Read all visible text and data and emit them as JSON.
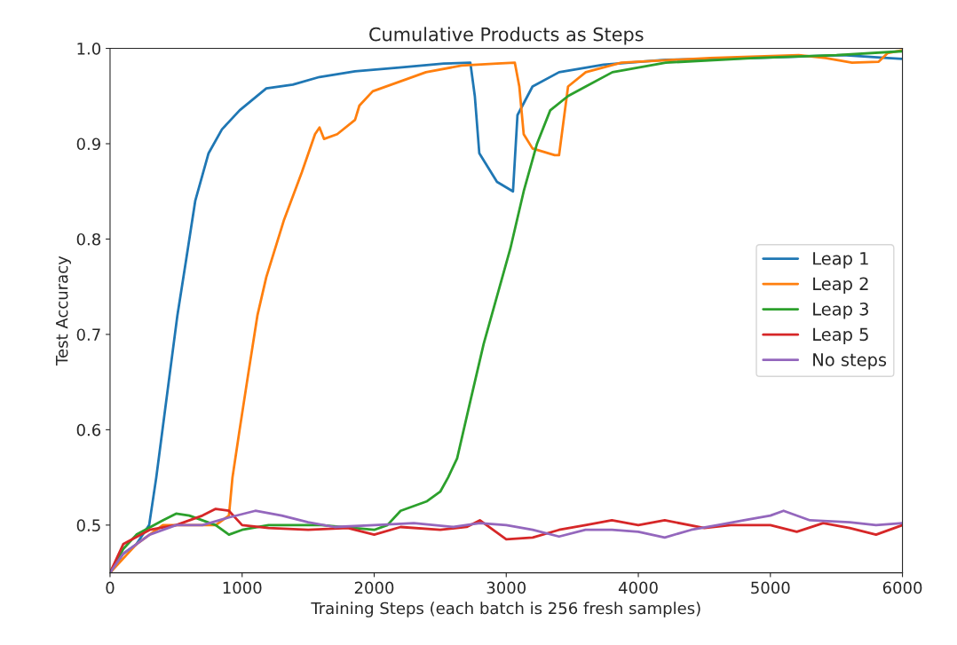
{
  "chart_data": {
    "type": "line",
    "title": "Cumulative Products as Steps",
    "xlabel": "Training Steps (each batch is 256 fresh samples)",
    "ylabel": "Test Accuracy",
    "xlim": [
      0,
      6000
    ],
    "ylim": [
      0.45,
      1.0
    ],
    "xticks": [
      0,
      1000,
      2000,
      3000,
      4000,
      5000,
      6000
    ],
    "yticks": [
      {
        "value": 0.5,
        "label": "0.5"
      },
      {
        "value": 0.6,
        "label": "0.6"
      },
      {
        "value": 0.7,
        "label": "0.7"
      },
      {
        "value": 0.8,
        "label": "0.8"
      },
      {
        "value": 0.9,
        "label": "0.9"
      },
      {
        "value": 1.0,
        "label": "1.0"
      }
    ],
    "grid": false,
    "legend": "right",
    "series": [
      {
        "name": "Leap 1",
        "color": "#1f77b4",
        "x": [
          0,
          100,
          200,
          296,
          350,
          444,
          510,
          578,
          645,
          746,
          847,
          981,
          1183,
          1384,
          1586,
          1855,
          2191,
          2527,
          2728,
          2762,
          2796,
          2930,
          3051,
          3085,
          3199,
          3400,
          3737,
          4207,
          4879,
          5551,
          5887,
          6000
        ],
        "values": [
          0.45,
          0.47,
          0.48,
          0.5,
          0.55,
          0.65,
          0.72,
          0.78,
          0.84,
          0.89,
          0.915,
          0.935,
          0.958,
          0.962,
          0.97,
          0.976,
          0.98,
          0.984,
          0.985,
          0.95,
          0.89,
          0.86,
          0.85,
          0.93,
          0.96,
          0.975,
          0.983,
          0.988,
          0.99,
          0.993,
          0.99,
          0.989
        ]
      },
      {
        "name": "Leap 2",
        "color": "#ff7f0e",
        "x": [
          0,
          200,
          400,
          600,
          800,
          900,
          927,
          981,
          1048,
          1116,
          1183,
          1317,
          1452,
          1552,
          1586,
          1620,
          1720,
          1855,
          1888,
          1989,
          2191,
          2392,
          2661,
          2930,
          3065,
          3099,
          3132,
          3199,
          3367,
          3400,
          3468,
          3602,
          3871,
          4543,
          5215,
          5417,
          5618,
          5820,
          5887,
          6000
        ],
        "values": [
          0.45,
          0.48,
          0.5,
          0.5,
          0.5,
          0.51,
          0.55,
          0.6,
          0.66,
          0.72,
          0.76,
          0.82,
          0.87,
          0.91,
          0.917,
          0.905,
          0.91,
          0.925,
          0.94,
          0.955,
          0.965,
          0.975,
          0.982,
          0.984,
          0.985,
          0.96,
          0.91,
          0.895,
          0.888,
          0.888,
          0.96,
          0.975,
          0.985,
          0.99,
          0.993,
          0.99,
          0.985,
          0.986,
          0.995,
          0.998
        ]
      },
      {
        "name": "Leap 3",
        "color": "#2ca02c",
        "x": [
          0,
          100,
          200,
          400,
          500,
          600,
          800,
          900,
          1000,
          1200,
          1600,
          2000,
          2100,
          2200,
          2400,
          2500,
          2560,
          2628,
          2728,
          2829,
          2930,
          3031,
          3132,
          3233,
          3333,
          3468,
          3602,
          3804,
          4207,
          4879,
          5500,
          6000
        ],
        "values": [
          0.45,
          0.475,
          0.49,
          0.505,
          0.512,
          0.51,
          0.5,
          0.49,
          0.495,
          0.5,
          0.5,
          0.495,
          0.5,
          0.515,
          0.525,
          0.535,
          0.55,
          0.57,
          0.63,
          0.69,
          0.74,
          0.79,
          0.85,
          0.9,
          0.935,
          0.95,
          0.96,
          0.975,
          0.985,
          0.99,
          0.993,
          0.997
        ]
      },
      {
        "name": "Leap 5",
        "color": "#d62728",
        "x": [
          0,
          100,
          300,
          500,
          700,
          800,
          900,
          1000,
          1200,
          1500,
          1800,
          2000,
          2200,
          2500,
          2700,
          2800,
          3000,
          3200,
          3400,
          3600,
          3800,
          4000,
          4200,
          4500,
          4700,
          5000,
          5200,
          5400,
          5600,
          5800,
          6000
        ],
        "values": [
          0.45,
          0.48,
          0.495,
          0.5,
          0.51,
          0.517,
          0.515,
          0.5,
          0.497,
          0.495,
          0.497,
          0.49,
          0.498,
          0.495,
          0.498,
          0.505,
          0.485,
          0.487,
          0.495,
          0.5,
          0.505,
          0.5,
          0.505,
          0.497,
          0.5,
          0.5,
          0.493,
          0.502,
          0.497,
          0.49,
          0.5
        ]
      },
      {
        "name": "No steps",
        "color": "#9467bd",
        "x": [
          0,
          100,
          300,
          500,
          700,
          900,
          1100,
          1300,
          1500,
          1700,
          2000,
          2300,
          2600,
          2800,
          3000,
          3200,
          3400,
          3600,
          3800,
          4000,
          4200,
          4400,
          4600,
          4800,
          5000,
          5100,
          5300,
          5600,
          5800,
          6000
        ],
        "values": [
          0.45,
          0.47,
          0.49,
          0.5,
          0.5,
          0.508,
          0.515,
          0.51,
          0.503,
          0.498,
          0.5,
          0.502,
          0.498,
          0.502,
          0.5,
          0.495,
          0.488,
          0.495,
          0.495,
          0.493,
          0.487,
          0.495,
          0.5,
          0.505,
          0.51,
          0.515,
          0.505,
          0.503,
          0.5,
          0.502
        ]
      }
    ]
  }
}
